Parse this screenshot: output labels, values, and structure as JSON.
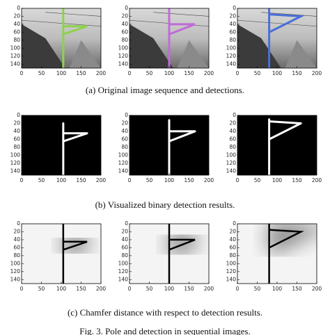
{
  "figure": {
    "rows": [
      {
        "caption": "(a)  Original image sequence and detections.",
        "panels": [
          {
            "xticks": [
              0,
              50,
              100,
              150,
              200
            ],
            "yticks": [
              0,
              20,
              40,
              60,
              80,
              100,
              120,
              140
            ]
          },
          {
            "xticks": [
              0,
              50,
              100,
              150,
              200
            ],
            "yticks": [
              0,
              20,
              40,
              60,
              80,
              100,
              120,
              140
            ]
          },
          {
            "xticks": [
              0,
              50,
              100,
              150,
              200
            ],
            "yticks": [
              0,
              20,
              40,
              60,
              80,
              100,
              120,
              140
            ]
          }
        ]
      },
      {
        "caption": "(b)  Visualized binary detection results.",
        "panels": [
          {
            "xticks": [
              0,
              50,
              100,
              150,
              200
            ],
            "yticks": [
              0,
              20,
              40,
              60,
              80,
              100,
              120,
              140
            ]
          },
          {
            "xticks": [
              0,
              50,
              100,
              150,
              200
            ],
            "yticks": [
              0,
              20,
              40,
              60,
              80,
              100,
              120,
              140
            ]
          },
          {
            "xticks": [
              0,
              50,
              100,
              150,
              200
            ],
            "yticks": [
              0,
              20,
              40,
              60,
              80,
              100,
              120,
              140
            ]
          }
        ]
      },
      {
        "caption": "(c)  Chamfer distance with respect to detection results.",
        "panels": [
          {
            "xticks": [
              0,
              50,
              100,
              150,
              200
            ],
            "yticks": [
              0,
              20,
              40,
              60,
              80,
              100,
              120,
              140
            ]
          },
          {
            "xticks": [
              0,
              50,
              100,
              150,
              200
            ],
            "yticks": [
              0,
              20,
              40,
              60,
              80,
              100,
              120,
              140
            ]
          },
          {
            "xticks": [
              0,
              50,
              100,
              150,
              200
            ],
            "yticks": [
              0,
              20,
              40,
              60,
              80,
              100,
              120,
              140
            ]
          }
        ]
      }
    ],
    "footer": "Fig. 3.    Pole and detection in sequential images."
  }
}
